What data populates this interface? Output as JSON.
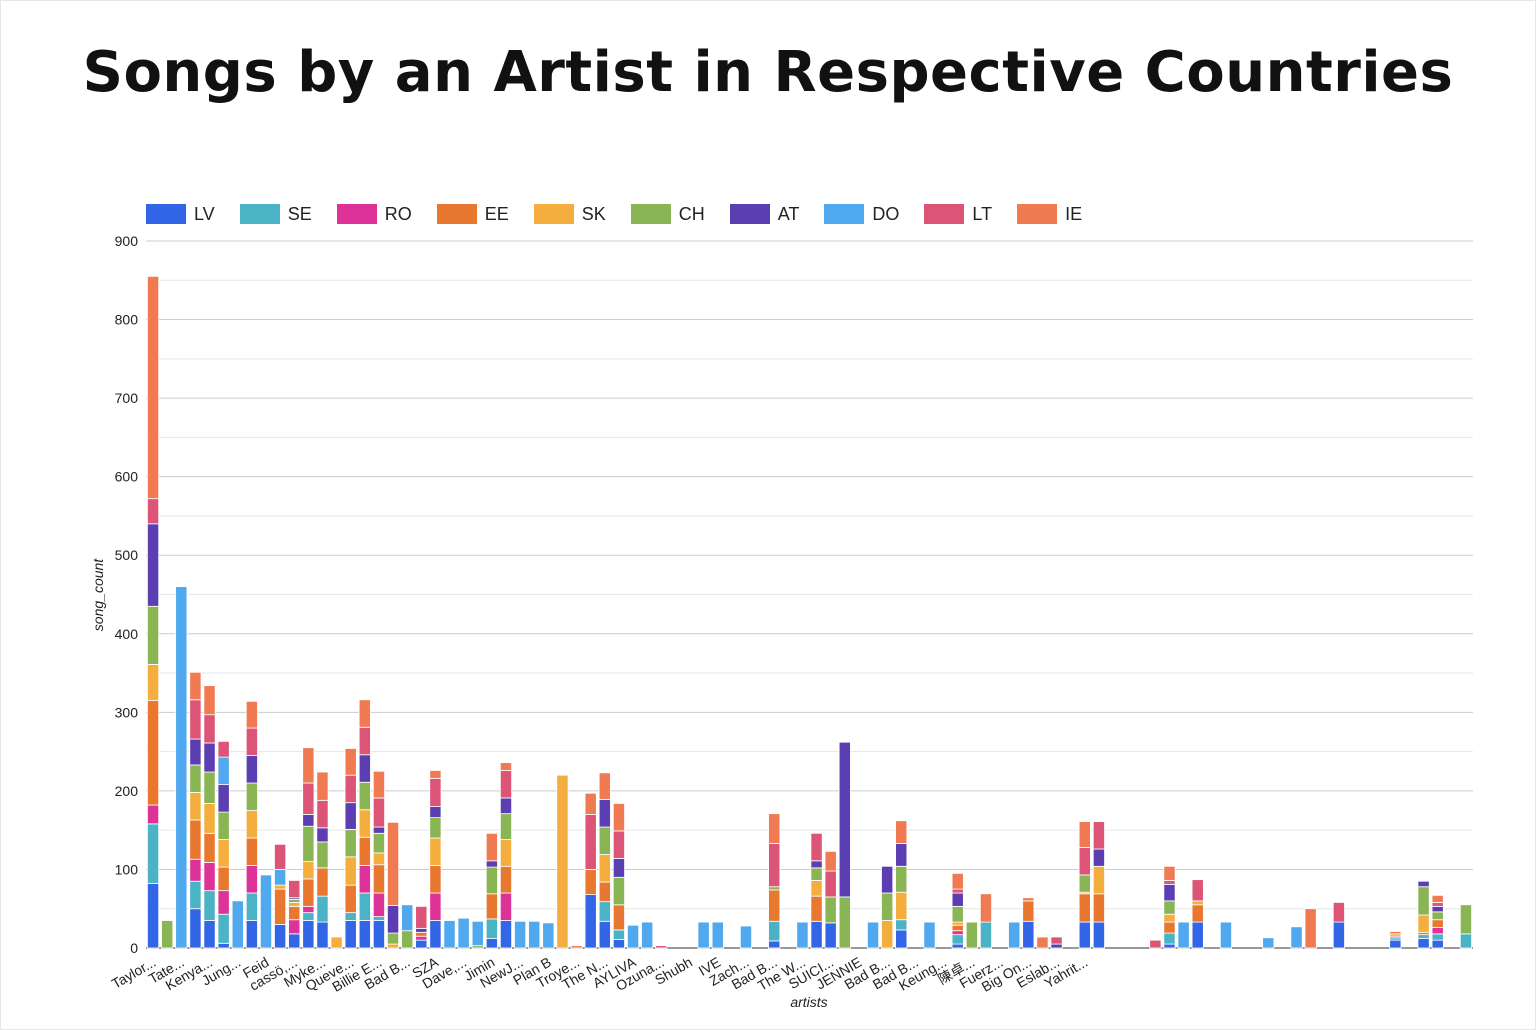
{
  "chart_data": {
    "type": "bar",
    "stacked": true,
    "title": "Songs by an Artist in Respective Countries",
    "xlabel": "artists",
    "ylabel": "song_count",
    "ylim": [
      0,
      900
    ],
    "yticks": [
      0,
      100,
      200,
      300,
      400,
      500,
      600,
      700,
      800,
      900
    ],
    "grid": true,
    "legend_position": "top-left",
    "series_names": [
      "LV",
      "SE",
      "RO",
      "EE",
      "SK",
      "CH",
      "AT",
      "DO",
      "LT",
      "IE"
    ],
    "colors": {
      "LV": "#3366e6",
      "SE": "#4bb3c6",
      "RO": "#dd3399",
      "EE": "#e87830",
      "SK": "#f4ae3d",
      "CH": "#8ab554",
      "AT": "#5b3fb2",
      "DO": "#50a8ee",
      "LT": "#dc5577",
      "IE": "#f07b53"
    },
    "tick_labels": [
      "Taylor...",
      "Tate...",
      "Kenya...",
      "Jung...",
      "Feid",
      "cassö,...",
      "Myke...",
      "Queve...",
      "Billie E...",
      "Bad B...",
      "SZA",
      "Dave,...",
      "Jimin",
      "NewJ...",
      "Plan B",
      "Troye...",
      "The N...",
      "AYLIVA",
      "Ozuna...",
      "Shubh",
      "IVE",
      "Zach...",
      "Bad B...",
      "The W...",
      "SUICI...",
      "JENNIE",
      "Bad B...",
      "Bad B...",
      "Keung...",
      "陳卓...",
      "Fuerz...",
      "Big On...",
      "Eslab...",
      "Yahrit..."
    ],
    "tick_positions": [
      0,
      2,
      4,
      6,
      8,
      10,
      12,
      14,
      16,
      18,
      20,
      22,
      24,
      26,
      28,
      30,
      32,
      34,
      36,
      38,
      40,
      42,
      44,
      46,
      48,
      50,
      52,
      54,
      56,
      58,
      60,
      62,
      64,
      66
    ],
    "bars": [
      {
        "LV": 82,
        "SE": 76,
        "RO": 24,
        "EE": 133,
        "SK": 46,
        "CH": 74,
        "AT": 105,
        "LT": 32,
        "IE": 283
      },
      {
        "CH": 35
      },
      {
        "DO": 460
      },
      {
        "LV": 50,
        "SE": 35,
        "RO": 28,
        "EE": 50,
        "SK": 35,
        "CH": 35,
        "AT": 33,
        "LT": 50,
        "IE": 35
      },
      {
        "LV": 35,
        "SE": 38,
        "RO": 36,
        "EE": 37,
        "SK": 38,
        "CH": 40,
        "AT": 37,
        "LT": 36,
        "IE": 37
      },
      {
        "LV": 6,
        "SE": 37,
        "RO": 30,
        "EE": 30,
        "SK": 35,
        "CH": 35,
        "AT": 35,
        "DO": 35,
        "LT": 20
      },
      {
        "DO": 60
      },
      {
        "LV": 35,
        "SE": 35,
        "RO": 35,
        "EE": 35,
        "SK": 35,
        "CH": 35,
        "AT": 35,
        "LT": 35,
        "IE": 34
      },
      {
        "DO": 93
      },
      {
        "LV": 30,
        "EE": 45,
        "SK": 5,
        "DO": 20,
        "LT": 32
      },
      {
        "LV": 18,
        "RO": 18,
        "EE": 17,
        "SK": 5,
        "CH": 4,
        "AT": 2,
        "LT": 22
      },
      {
        "LV": 35,
        "SE": 10,
        "RO": 8,
        "EE": 35,
        "SK": 22,
        "CH": 45,
        "AT": 15,
        "LT": 40,
        "IE": 45
      },
      {
        "LV": 33,
        "SE": 33,
        "EE": 36,
        "CH": 33,
        "AT": 18,
        "LT": 35,
        "IE": 36
      },
      {
        "SK": 14
      },
      {
        "LV": 35,
        "SE": 10,
        "EE": 35,
        "SK": 36,
        "CH": 35,
        "AT": 34,
        "LT": 35,
        "IE": 34
      },
      {
        "LV": 35,
        "SE": 35,
        "RO": 35,
        "EE": 36,
        "SK": 35,
        "CH": 35,
        "AT": 35,
        "LT": 35,
        "IE": 35
      },
      {
        "LV": 35,
        "SE": 5,
        "RO": 30,
        "EE": 36,
        "SK": 15,
        "CH": 25,
        "AT": 8,
        "LT": 37,
        "IE": 34
      },
      {
        "SK": 5,
        "CH": 14,
        "AT": 35,
        "IE": 106
      },
      {
        "CH": 22,
        "DO": 33
      },
      {
        "LV": 10,
        "RO": 5,
        "EE": 5,
        "AT": 5,
        "LT": 28
      },
      {
        "LV": 35,
        "RO": 35,
        "EE": 35,
        "SK": 35,
        "CH": 26,
        "AT": 14,
        "LT": 36,
        "IE": 10
      },
      {
        "DO": 35
      },
      {
        "DO": 38
      },
      {
        "CH": 3,
        "DO": 31
      },
      {
        "LV": 12,
        "SE": 25,
        "EE": 32,
        "CH": 34,
        "AT": 8,
        "IE": 35
      },
      {
        "LV": 35,
        "RO": 35,
        "EE": 34,
        "SK": 34,
        "CH": 33,
        "AT": 20,
        "LT": 35,
        "IE": 10
      },
      {
        "DO": 34
      },
      {
        "DO": 34
      },
      {
        "DO": 32
      },
      {
        "SK": 220
      },
      {
        "IE": 3
      },
      {
        "LV": 68,
        "EE": 32,
        "LT": 70,
        "IE": 27
      },
      {
        "LV": 34,
        "SE": 25,
        "EE": 25,
        "SK": 35,
        "CH": 35,
        "AT": 35,
        "IE": 34
      },
      {
        "LV": 11,
        "SE": 12,
        "EE": 32,
        "CH": 35,
        "AT": 24,
        "LT": 35,
        "IE": 35
      },
      {
        "DO": 29
      },
      {
        "DO": 33
      },
      {
        "LT": 3
      },
      {},
      {},
      {
        "DO": 33
      },
      {
        "DO": 33
      },
      {},
      {
        "DO": 28
      },
      {},
      {
        "LV": 9,
        "SE": 25,
        "EE": 40,
        "CH": 4,
        "LT": 55,
        "IE": 38
      },
      {},
      {
        "DO": 33
      },
      {
        "LV": 34,
        "EE": 32,
        "SK": 20,
        "CH": 16,
        "AT": 9,
        "LT": 35
      },
      {
        "LV": 32,
        "CH": 33,
        "LT": 33,
        "IE": 25
      },
      {
        "AT": 197,
        "CH": 65
      },
      {},
      {
        "DO": 33
      },
      {
        "CH": 35,
        "SK": 35,
        "AT": 34
      },
      {
        "LV": 23,
        "SE": 13,
        "SK": 35,
        "CH": 33,
        "AT": 29,
        "IE": 29
      },
      {},
      {
        "DO": 33
      },
      {},
      {
        "LV": 5,
        "SE": 12,
        "RO": 5,
        "EE": 7,
        "SK": 4,
        "CH": 20,
        "AT": 17,
        "LT": 5,
        "IE": 20
      },
      {
        "CH": 33
      },
      {
        "SE": 33,
        "IE": 36
      },
      {},
      {
        "DO": 33
      },
      {
        "LV": 34,
        "EE": 26,
        "IE": 4
      },
      {
        "IE": 14
      },
      {
        "AT": 5,
        "LT": 9
      },
      {},
      {
        "LV": 33,
        "EE": 36,
        "SK": 2,
        "CH": 22,
        "LT": 35,
        "IE": 33
      },
      {
        "LV": 33,
        "EE": 36,
        "SK": 35,
        "AT": 22,
        "LT": 35,
        "IE": 1
      },
      {},
      {},
      {},
      {
        "LT": 10
      },
      {
        "LV": 5,
        "SE": 14,
        "EE": 14,
        "SK": 10,
        "CH": 17,
        "AT": 21,
        "LT": 5,
        "IE": 18
      },
      {
        "DO": 33
      },
      {
        "LV": 33,
        "EE": 22,
        "SK": 5,
        "LT": 27
      },
      {},
      {
        "DO": 33
      },
      {},
      {},
      {
        "DO": 13
      },
      {},
      {
        "DO": 27
      },
      {
        "IE": 50
      },
      {},
      {
        "LV": 33,
        "LT": 25
      },
      {},
      {},
      {},
      {
        "LV": 10,
        "SE": 3,
        "RO": 2,
        "SK": 3,
        "IE": 3
      },
      {},
      {
        "LV": 12,
        "SE": 5,
        "EE": 3,
        "SK": 22,
        "CH": 36,
        "AT": 7
      },
      {
        "LV": 10,
        "SE": 8,
        "EE": 10,
        "CH": 10,
        "AT": 7,
        "LT": 5,
        "RO": 8,
        "IE": 9
      },
      {},
      {
        "SE": 18,
        "CH": 37
      }
    ]
  }
}
